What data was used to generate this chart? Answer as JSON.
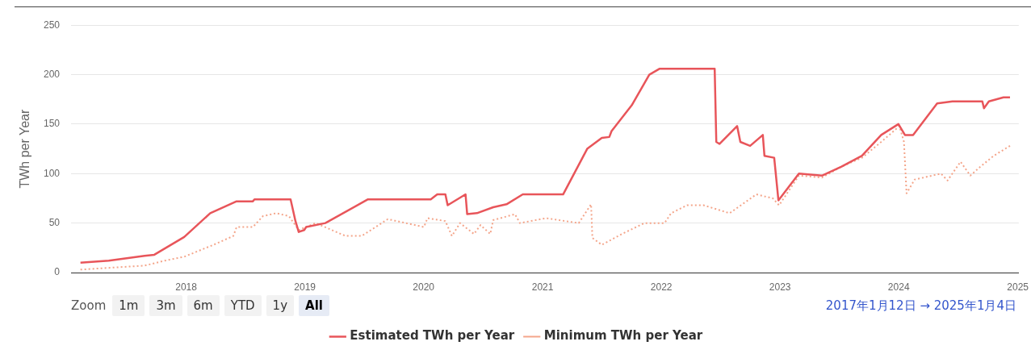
{
  "chart_data": {
    "type": "line",
    "ylabel": "TWh per Year",
    "xlim": [
      "2017-01-12",
      "2025-01-04"
    ],
    "xticks": [
      {
        "value": "2018-01-01",
        "label": "2018"
      },
      {
        "value": "2019-01-01",
        "label": "2019"
      },
      {
        "value": "2020-01-01",
        "label": "2020"
      },
      {
        "value": "2021-01-01",
        "label": "2021"
      },
      {
        "value": "2022-01-01",
        "label": "2022"
      },
      {
        "value": "2023-01-01",
        "label": "2023"
      },
      {
        "value": "2024-01-01",
        "label": "2024"
      },
      {
        "value": "2025-01-01",
        "label": "2025"
      }
    ],
    "ylim": [
      0,
      250
    ],
    "yticks": [
      0,
      50,
      100,
      150,
      200,
      250
    ],
    "grid": "y",
    "legend": "bottom",
    "series": [
      {
        "name": "Estimated TWh per Year",
        "color": "#e8555a",
        "line_style": "solid",
        "x": [
          "2017-02-10",
          "2017-05-08",
          "2017-08-26",
          "2017-09-25",
          "2017-12-26",
          "2018-03-16",
          "2018-06-05",
          "2018-07-25",
          "2018-07-30",
          "2018-11-18",
          "2018-12-03",
          "2018-12-13",
          "2018-12-30",
          "2019-01-05",
          "2019-03-05",
          "2019-07-14",
          "2020-01-23",
          "2020-02-12",
          "2020-03-08",
          "2020-03-15",
          "2020-05-09",
          "2020-05-14",
          "2020-06-13",
          "2020-08-02",
          "2020-09-12",
          "2020-11-01",
          "2021-03-05",
          "2021-05-18",
          "2021-07-02",
          "2021-07-25",
          "2021-08-01",
          "2021-10-02",
          "2021-11-25",
          "2021-12-27",
          "2022-06-14",
          "2022-06-19",
          "2022-06-29",
          "2022-08-22",
          "2022-09-01",
          "2022-10-01",
          "2022-11-09",
          "2022-11-14",
          "2022-12-14",
          "2022-12-27",
          "2023-02-28",
          "2023-05-11",
          "2023-07-09",
          "2023-09-10",
          "2023-11-08",
          "2023-12-31",
          "2024-01-20",
          "2024-02-14",
          "2024-04-28",
          "2024-06-14",
          "2024-09-14",
          "2024-09-19",
          "2024-10-04",
          "2024-11-18",
          "2024-12-08"
        ],
        "values": [
          10,
          12,
          17,
          18,
          36,
          60,
          72,
          72,
          74,
          74,
          52,
          41,
          43,
          46,
          50,
          74,
          74,
          79,
          79,
          68,
          79,
          59,
          60,
          66,
          69,
          79,
          79,
          125,
          136,
          137,
          143,
          169,
          200,
          206,
          206,
          132,
          130,
          148,
          132,
          128,
          139,
          118,
          116,
          73,
          100,
          98,
          107,
          118,
          139,
          150,
          139,
          139,
          171,
          173,
          173,
          166,
          173,
          177,
          177
        ]
      },
      {
        "name": "Minimum TWh per Year",
        "color": "#f4a58a",
        "line_style": "dotted",
        "x": [
          "2017-02-10",
          "2017-08-26",
          "2017-10-27",
          "2017-12-26",
          "2018-03-26",
          "2018-05-26",
          "2018-06-05",
          "2018-07-25",
          "2018-08-25",
          "2018-10-05",
          "2018-11-13",
          "2018-12-13",
          "2019-02-03",
          "2019-05-06",
          "2019-06-25",
          "2019-09-13",
          "2020-01-02",
          "2020-01-13",
          "2020-03-08",
          "2020-03-28",
          "2020-04-22",
          "2020-06-04",
          "2020-06-24",
          "2020-07-24",
          "2020-08-02",
          "2020-10-08",
          "2020-10-23",
          "2021-01-12",
          "2021-04-22",
          "2021-05-30",
          "2021-06-03",
          "2021-07-02",
          "2021-09-02",
          "2021-11-10",
          "2022-01-11",
          "2022-01-31",
          "2022-03-21",
          "2022-05-11",
          "2022-07-30",
          "2022-10-20",
          "2022-12-10",
          "2022-12-29",
          "2023-02-28",
          "2023-05-10",
          "2023-07-09",
          "2023-09-10",
          "2023-11-08",
          "2024-01-03",
          "2024-01-17",
          "2024-01-25",
          "2024-02-19",
          "2024-05-10",
          "2024-05-30",
          "2024-07-09",
          "2024-08-08",
          "2024-09-08",
          "2024-10-19",
          "2024-12-08"
        ],
        "values": [
          3,
          7,
          12,
          16,
          28,
          37,
          46,
          46,
          57,
          60,
          57,
          43,
          50,
          37,
          37,
          54,
          46,
          55,
          52,
          37,
          50,
          39,
          48,
          39,
          53,
          59,
          50,
          55,
          50,
          69,
          35,
          28,
          39,
          50,
          50,
          60,
          68,
          68,
          60,
          79,
          75,
          68,
          98,
          96,
          107,
          116,
          132,
          148,
          132,
          80,
          94,
          100,
          93,
          112,
          98,
          107,
          118,
          128
        ]
      }
    ],
    "annotations": [
      "Zoom",
      "1m",
      "3m",
      "6m",
      "YTD",
      "1y",
      "All",
      "2017年1月12日 → 2025年1月4日"
    ]
  }
}
